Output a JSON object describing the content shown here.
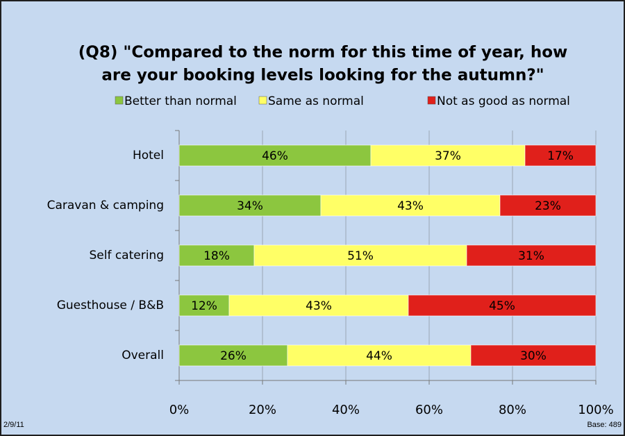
{
  "chart_data": {
    "type": "stacked_bar_horizontal",
    "title": [
      "(Q8) \"Compared to the norm for this time of year, how",
      "are your booking levels looking for the autumn?\""
    ],
    "categories": [
      "Hotel",
      "Caravan & camping",
      "Self catering",
      "Guesthouse / B&B",
      "Overall"
    ],
    "series": [
      {
        "name": "Better than normal",
        "color": "#8cc63f",
        "values": [
          46,
          34,
          18,
          12,
          26
        ],
        "value_labels": [
          "46%",
          "34%",
          "18%",
          "12%",
          "26%"
        ]
      },
      {
        "name": "Same as normal",
        "color": "#ffff66",
        "values": [
          37,
          43,
          51,
          43,
          44
        ],
        "value_labels": [
          "37%",
          "43%",
          "51%",
          "43%",
          "44%"
        ]
      },
      {
        "name": "Not as good as normal",
        "color": "#e0201b",
        "values": [
          17,
          23,
          31,
          45,
          30
        ],
        "value_labels": [
          "17%",
          "23%",
          "31%",
          "45%",
          "30%"
        ]
      }
    ],
    "xlim": [
      0,
      100
    ],
    "xticks": [
      {
        "value": 0,
        "label": "0%"
      },
      {
        "value": 20,
        "label": "20%"
      },
      {
        "value": 40,
        "label": "40%"
      },
      {
        "value": 60,
        "label": "60%"
      },
      {
        "value": 80,
        "label": "80%"
      },
      {
        "value": 100,
        "label": "100%"
      }
    ],
    "grid": true,
    "legend": "top",
    "date": "2/9/11",
    "base": "Base: 489"
  }
}
